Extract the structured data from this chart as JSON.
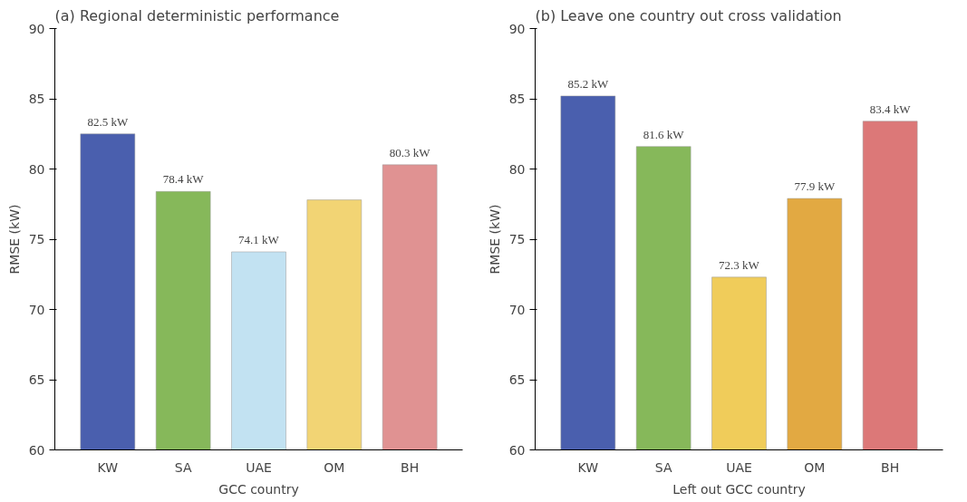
{
  "chart_data": [
    {
      "type": "bar",
      "title": "(a) Regional deterministic performance",
      "xlabel": "GCC country",
      "ylabel": "RMSE (kW)",
      "categories": [
        "KW",
        "SA",
        "UAE",
        "OM",
        "BH"
      ],
      "values": [
        82.5,
        78.4,
        74.1,
        77.8,
        80.3
      ],
      "colors": [
        "#4a5fae",
        "#86b85a",
        "#c2e2f2",
        "#f2d474",
        "#e09292"
      ],
      "value_labels": [
        "82.5 kW",
        "78.4 kW",
        "74.1 kW",
        null,
        "80.3 kW"
      ],
      "ylim": [
        60,
        90
      ],
      "yticks": [
        60,
        65,
        70,
        75,
        80,
        85,
        90
      ],
      "grid": false
    },
    {
      "type": "bar",
      "title": "(b) Leave one country out cross validation",
      "xlabel": "Left out GCC country",
      "ylabel": "RMSE (kW)",
      "categories": [
        "KW",
        "SA",
        "UAE",
        "OM",
        "BH"
      ],
      "values": [
        85.2,
        81.6,
        72.3,
        77.9,
        83.4
      ],
      "colors": [
        "#4a5fae",
        "#86b85a",
        "#f0cc5a",
        "#e2a942",
        "#dc7878"
      ],
      "value_labels": [
        "85.2 kW",
        "81.6 kW",
        "72.3 kW",
        "77.9 kW",
        "83.4 kW"
      ],
      "ylim": [
        60,
        90
      ],
      "yticks": [
        60,
        65,
        70,
        75,
        80,
        85,
        90
      ],
      "grid": false
    }
  ]
}
